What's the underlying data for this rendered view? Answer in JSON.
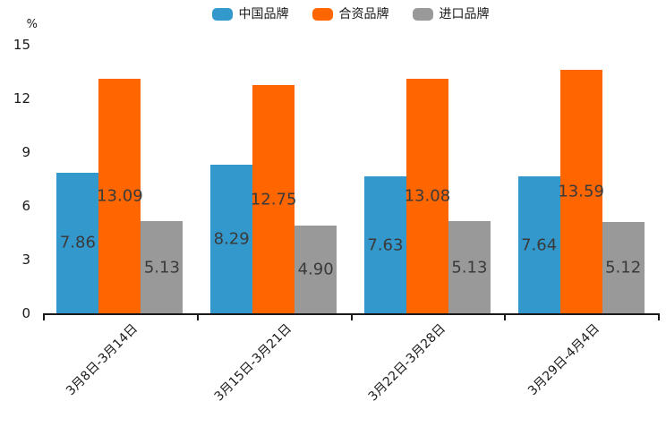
{
  "chart_data": {
    "type": "bar",
    "title": "",
    "unit_label": "%",
    "legend_position": "top-center",
    "grid": false,
    "categories": [
      "3月8日-3月14日",
      "3月15日-3月21日",
      "3月22日-3月28日",
      "3月29日-4月4日"
    ],
    "series": [
      {
        "name": "中国品牌",
        "color": "#3398cc",
        "values": [
          7.86,
          8.29,
          7.63,
          7.64
        ]
      },
      {
        "name": "合资品牌",
        "color": "#ff6600",
        "values": [
          13.09,
          12.75,
          13.08,
          13.59
        ]
      },
      {
        "name": "进口品牌",
        "color": "#999999",
        "values": [
          5.13,
          4.9,
          5.13,
          5.12
        ]
      }
    ],
    "value_label_decimals": 2,
    "y_axis": {
      "ticks": [
        0,
        3,
        6,
        9,
        12,
        15
      ],
      "min": 0,
      "max": 15
    }
  }
}
